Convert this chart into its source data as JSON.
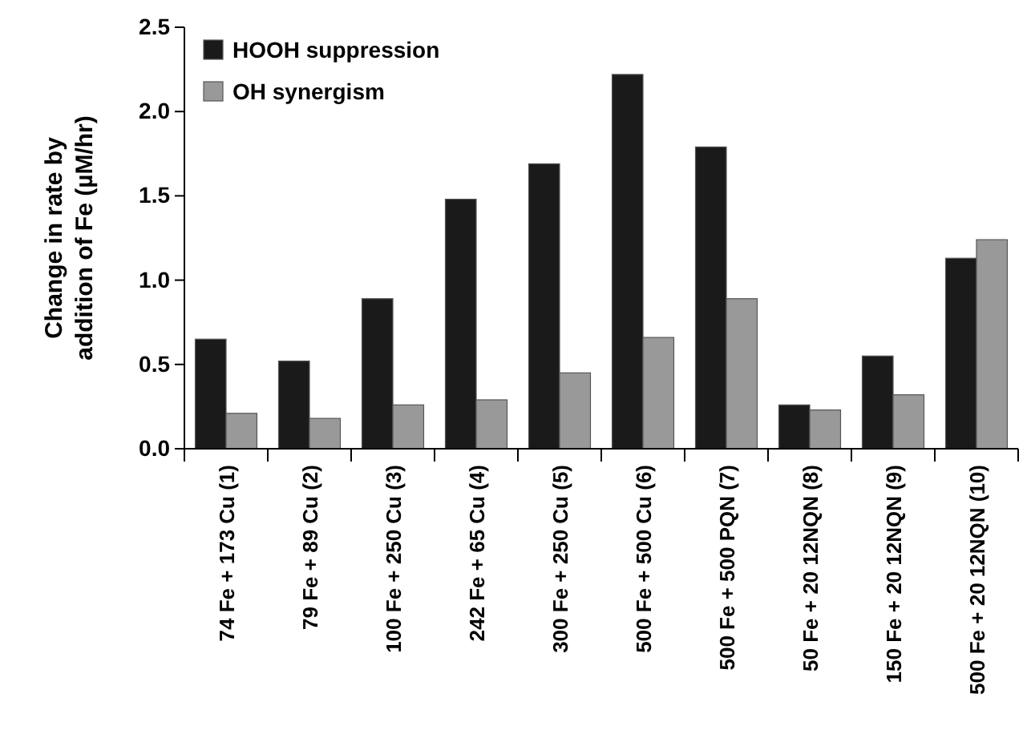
{
  "chart_data": {
    "type": "bar",
    "ylabel": "Change in rate by\naddition of Fe (µM/hr)",
    "categories": [
      "74 Fe + 173 Cu (1)",
      "79 Fe + 89 Cu (2)",
      "100 Fe + 250 Cu (3)",
      "242 Fe + 65 Cu (4)",
      "300 Fe + 250 Cu (5)",
      "500 Fe + 500 Cu (6)",
      "500 Fe + 500 PQN (7)",
      "50 Fe + 20 12NQN (8)",
      "150 Fe + 20 12NQN (9)",
      "500 Fe + 20 12NQN (10)"
    ],
    "series": [
      {
        "name": "HOOH suppression",
        "color": "#1a1a1a",
        "values": [
          0.65,
          0.52,
          0.89,
          1.48,
          1.69,
          2.22,
          1.79,
          0.26,
          0.55,
          1.13
        ]
      },
      {
        "name": "OH synergism",
        "color": "#999999",
        "values": [
          0.21,
          0.18,
          0.26,
          0.29,
          0.45,
          0.66,
          0.89,
          0.23,
          0.32,
          1.24
        ]
      }
    ],
    "ylim": [
      0,
      2.5
    ],
    "yticks": [
      {
        "value": 0,
        "label": "0.0"
      },
      {
        "value": 0.5,
        "label": "0.5"
      },
      {
        "value": 1,
        "label": "1.0"
      },
      {
        "value": 1.5,
        "label": "1.5"
      },
      {
        "value": 2,
        "label": "2.0"
      },
      {
        "value": 2.5,
        "label": "2.5"
      }
    ],
    "legend": "top left",
    "grid": false
  }
}
